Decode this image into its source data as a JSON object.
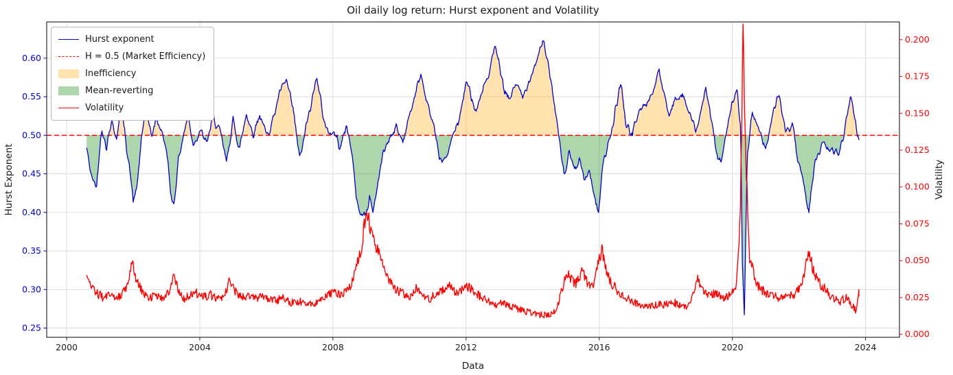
{
  "figure": {
    "title": "Oil daily log return: Hurst exponent and Volatility",
    "xlabel": "Data",
    "ylabel_left": "Hurst Exponent",
    "ylabel_right": "Volatility"
  },
  "legend": {
    "items": [
      {
        "label": "Hurst exponent",
        "type": "line",
        "color": "#0000cc",
        "dash": false
      },
      {
        "label": "H = 0.5 (Market Efficiency)",
        "type": "line",
        "color": "#ff0000",
        "dash": true
      },
      {
        "label": "Inefficiency",
        "type": "patch",
        "color": "#ffa500",
        "opacity": 0.32
      },
      {
        "label": "Mean-reverting",
        "type": "patch",
        "color": "#008000",
        "opacity": 0.32
      },
      {
        "label": "Volatility",
        "type": "line",
        "color": "#ff0000",
        "dash": false
      }
    ]
  },
  "chart_data": {
    "type": "line",
    "title": "Oil daily log return: Hurst exponent and Volatility",
    "xlabel": "Data",
    "ylabel_left": "Hurst Exponent",
    "ylabel_right": "Volatility",
    "grid": true,
    "grid_color": "#d9d9d9",
    "legend_position": "upper left",
    "x_ticks": [
      2000,
      2004,
      2008,
      2012,
      2016,
      2020,
      2024
    ],
    "left_ticks": [
      0.25,
      0.3,
      0.35,
      0.4,
      0.45,
      0.5,
      0.55,
      0.6
    ],
    "right_ticks": [
      0.0,
      0.025,
      0.05,
      0.075,
      0.1,
      0.125,
      0.15,
      0.175,
      0.2
    ],
    "xlim": [
      1999.4,
      2025.02
    ],
    "ylim_left": [
      0.238,
      0.647
    ],
    "ylim_right": [
      -0.002,
      0.212
    ],
    "left_axis_color": "#0000cc",
    "right_axis_color": "#ff0000",
    "reference_line": {
      "label": "H = 0.5 (Market Efficiency)",
      "value": 0.5,
      "color": "#ff0000",
      "style": "dashed"
    },
    "fills": [
      {
        "name": "Inefficiency",
        "condition": "hurst > 0.5",
        "color": "#ffa500",
        "opacity": 0.32
      },
      {
        "name": "Mean-reverting",
        "condition": "hurst < 0.5",
        "color": "#008000",
        "opacity": 0.32
      }
    ],
    "legend_entries": [
      "Hurst exponent",
      "H = 0.5 (Market Efficiency)",
      "Inefficiency",
      "Mean-reverting",
      "Volatility"
    ],
    "series": [
      {
        "name": "Hurst exponent",
        "axis": "left",
        "color": "#0000cc",
        "noise_amp": 0.008,
        "keypoints": [
          [
            2000.6,
            0.49
          ],
          [
            2000.75,
            0.452
          ],
          [
            2000.9,
            0.438
          ],
          [
            2001.05,
            0.505
          ],
          [
            2001.2,
            0.478
          ],
          [
            2001.35,
            0.52
          ],
          [
            2001.5,
            0.492
          ],
          [
            2001.62,
            0.545
          ],
          [
            2001.75,
            0.505
          ],
          [
            2001.88,
            0.462
          ],
          [
            2002.0,
            0.415
          ],
          [
            2002.12,
            0.432
          ],
          [
            2002.25,
            0.498
          ],
          [
            2002.4,
            0.535
          ],
          [
            2002.55,
            0.496
          ],
          [
            2002.7,
            0.522
          ],
          [
            2002.85,
            0.503
          ],
          [
            2003.0,
            0.478
          ],
          [
            2003.12,
            0.428
          ],
          [
            2003.22,
            0.416
          ],
          [
            2003.35,
            0.47
          ],
          [
            2003.5,
            0.5
          ],
          [
            2003.65,
            0.527
          ],
          [
            2003.8,
            0.492
          ],
          [
            2004.0,
            0.512
          ],
          [
            2004.2,
            0.482
          ],
          [
            2004.4,
            0.522
          ],
          [
            2004.6,
            0.498
          ],
          [
            2004.8,
            0.458
          ],
          [
            2005.0,
            0.52
          ],
          [
            2005.2,
            0.492
          ],
          [
            2005.4,
            0.535
          ],
          [
            2005.6,
            0.508
          ],
          [
            2005.8,
            0.53
          ],
          [
            2006.0,
            0.502
          ],
          [
            2006.2,
            0.525
          ],
          [
            2006.4,
            0.556
          ],
          [
            2006.6,
            0.566
          ],
          [
            2006.8,
            0.528
          ],
          [
            2007.0,
            0.472
          ],
          [
            2007.2,
            0.52
          ],
          [
            2007.4,
            0.556
          ],
          [
            2007.52,
            0.576
          ],
          [
            2007.65,
            0.54
          ],
          [
            2007.8,
            0.512
          ],
          [
            2008.0,
            0.5
          ],
          [
            2008.2,
            0.49
          ],
          [
            2008.4,
            0.512
          ],
          [
            2008.55,
            0.478
          ],
          [
            2008.7,
            0.428
          ],
          [
            2008.85,
            0.402
          ],
          [
            2009.0,
            0.396
          ],
          [
            2009.1,
            0.42
          ],
          [
            2009.2,
            0.402
          ],
          [
            2009.35,
            0.44
          ],
          [
            2009.5,
            0.478
          ],
          [
            2009.7,
            0.502
          ],
          [
            2009.9,
            0.52
          ],
          [
            2010.1,
            0.502
          ],
          [
            2010.3,
            0.532
          ],
          [
            2010.5,
            0.562
          ],
          [
            2010.65,
            0.585
          ],
          [
            2010.8,
            0.54
          ],
          [
            2011.0,
            0.518
          ],
          [
            2011.2,
            0.476
          ],
          [
            2011.4,
            0.466
          ],
          [
            2011.6,
            0.5
          ],
          [
            2011.8,
            0.522
          ],
          [
            2012.0,
            0.565
          ],
          [
            2012.15,
            0.545
          ],
          [
            2012.3,
            0.522
          ],
          [
            2012.5,
            0.552
          ],
          [
            2012.7,
            0.582
          ],
          [
            2012.85,
            0.624
          ],
          [
            2013.0,
            0.6
          ],
          [
            2013.15,
            0.562
          ],
          [
            2013.3,
            0.552
          ],
          [
            2013.5,
            0.576
          ],
          [
            2013.7,
            0.556
          ],
          [
            2013.9,
            0.58
          ],
          [
            2014.1,
            0.6
          ],
          [
            2014.3,
            0.627
          ],
          [
            2014.45,
            0.6
          ],
          [
            2014.6,
            0.565
          ],
          [
            2014.8,
            0.5
          ],
          [
            2014.95,
            0.455
          ],
          [
            2015.1,
            0.48
          ],
          [
            2015.25,
            0.45
          ],
          [
            2015.4,
            0.47
          ],
          [
            2015.55,
            0.44
          ],
          [
            2015.7,
            0.455
          ],
          [
            2015.85,
            0.42
          ],
          [
            2015.97,
            0.396
          ],
          [
            2016.1,
            0.46
          ],
          [
            2016.3,
            0.492
          ],
          [
            2016.5,
            0.545
          ],
          [
            2016.65,
            0.576
          ],
          [
            2016.8,
            0.522
          ],
          [
            2017.0,
            0.502
          ],
          [
            2017.2,
            0.526
          ],
          [
            2017.4,
            0.546
          ],
          [
            2017.6,
            0.56
          ],
          [
            2017.8,
            0.584
          ],
          [
            2017.95,
            0.55
          ],
          [
            2018.1,
            0.522
          ],
          [
            2018.3,
            0.546
          ],
          [
            2018.5,
            0.552
          ],
          [
            2018.7,
            0.52
          ],
          [
            2018.9,
            0.502
          ],
          [
            2019.05,
            0.532
          ],
          [
            2019.2,
            0.564
          ],
          [
            2019.35,
            0.52
          ],
          [
            2019.5,
            0.476
          ],
          [
            2019.65,
            0.462
          ],
          [
            2019.8,
            0.5
          ],
          [
            2020.0,
            0.545
          ],
          [
            2020.15,
            0.558
          ],
          [
            2020.25,
            0.5
          ],
          [
            2020.3,
            0.33
          ],
          [
            2020.36,
            0.262
          ],
          [
            2020.45,
            0.47
          ],
          [
            2020.6,
            0.52
          ],
          [
            2020.8,
            0.498
          ],
          [
            2021.0,
            0.48
          ],
          [
            2021.2,
            0.522
          ],
          [
            2021.4,
            0.556
          ],
          [
            2021.6,
            0.502
          ],
          [
            2021.8,
            0.52
          ],
          [
            2022.0,
            0.47
          ],
          [
            2022.15,
            0.436
          ],
          [
            2022.3,
            0.402
          ],
          [
            2022.45,
            0.456
          ],
          [
            2022.6,
            0.47
          ],
          [
            2022.8,
            0.486
          ],
          [
            2023.0,
            0.48
          ],
          [
            2023.2,
            0.476
          ],
          [
            2023.4,
            0.52
          ],
          [
            2023.55,
            0.56
          ],
          [
            2023.7,
            0.522
          ],
          [
            2023.8,
            0.495
          ]
        ]
      },
      {
        "name": "Volatility",
        "axis": "right",
        "color": "#ff0000",
        "noise_amp": 0.002,
        "keypoints": [
          [
            2000.6,
            0.038
          ],
          [
            2000.75,
            0.033
          ],
          [
            2000.9,
            0.028
          ],
          [
            2001.1,
            0.025
          ],
          [
            2001.3,
            0.028
          ],
          [
            2001.5,
            0.024
          ],
          [
            2001.7,
            0.028
          ],
          [
            2001.85,
            0.036
          ],
          [
            2001.97,
            0.05
          ],
          [
            2002.1,
            0.036
          ],
          [
            2002.3,
            0.028
          ],
          [
            2002.5,
            0.025
          ],
          [
            2002.7,
            0.027
          ],
          [
            2002.9,
            0.024
          ],
          [
            2003.1,
            0.031
          ],
          [
            2003.22,
            0.042
          ],
          [
            2003.35,
            0.03
          ],
          [
            2003.5,
            0.024
          ],
          [
            2003.7,
            0.026
          ],
          [
            2003.9,
            0.028
          ],
          [
            2004.1,
            0.025
          ],
          [
            2004.3,
            0.027
          ],
          [
            2004.5,
            0.024
          ],
          [
            2004.7,
            0.026
          ],
          [
            2004.9,
            0.036
          ],
          [
            2005.1,
            0.028
          ],
          [
            2005.3,
            0.025
          ],
          [
            2005.5,
            0.026
          ],
          [
            2005.7,
            0.024
          ],
          [
            2005.9,
            0.026
          ],
          [
            2006.1,
            0.024
          ],
          [
            2006.3,
            0.023
          ],
          [
            2006.5,
            0.025
          ],
          [
            2006.7,
            0.022
          ],
          [
            2006.9,
            0.021
          ],
          [
            2007.1,
            0.023
          ],
          [
            2007.3,
            0.02
          ],
          [
            2007.5,
            0.022
          ],
          [
            2007.7,
            0.024
          ],
          [
            2007.9,
            0.027
          ],
          [
            2008.1,
            0.028
          ],
          [
            2008.3,
            0.027
          ],
          [
            2008.5,
            0.031
          ],
          [
            2008.7,
            0.045
          ],
          [
            2008.85,
            0.058
          ],
          [
            2008.95,
            0.075
          ],
          [
            2009.05,
            0.08
          ],
          [
            2009.15,
            0.07
          ],
          [
            2009.3,
            0.06
          ],
          [
            2009.5,
            0.046
          ],
          [
            2009.7,
            0.036
          ],
          [
            2009.9,
            0.03
          ],
          [
            2010.1,
            0.028
          ],
          [
            2010.3,
            0.026
          ],
          [
            2010.5,
            0.031
          ],
          [
            2010.7,
            0.026
          ],
          [
            2010.9,
            0.024
          ],
          [
            2011.1,
            0.028
          ],
          [
            2011.3,
            0.03
          ],
          [
            2011.5,
            0.034
          ],
          [
            2011.7,
            0.028
          ],
          [
            2011.9,
            0.031
          ],
          [
            2012.1,
            0.032
          ],
          [
            2012.3,
            0.028
          ],
          [
            2012.5,
            0.024
          ],
          [
            2012.7,
            0.022
          ],
          [
            2012.9,
            0.02
          ],
          [
            2013.1,
            0.021
          ],
          [
            2013.3,
            0.019
          ],
          [
            2013.5,
            0.018
          ],
          [
            2013.7,
            0.016
          ],
          [
            2013.9,
            0.015
          ],
          [
            2014.1,
            0.014
          ],
          [
            2014.3,
            0.013
          ],
          [
            2014.5,
            0.013
          ],
          [
            2014.7,
            0.016
          ],
          [
            2014.9,
            0.032
          ],
          [
            2015.0,
            0.042
          ],
          [
            2015.15,
            0.038
          ],
          [
            2015.3,
            0.034
          ],
          [
            2015.5,
            0.044
          ],
          [
            2015.65,
            0.035
          ],
          [
            2015.8,
            0.032
          ],
          [
            2015.95,
            0.046
          ],
          [
            2016.08,
            0.058
          ],
          [
            2016.25,
            0.04
          ],
          [
            2016.4,
            0.034
          ],
          [
            2016.6,
            0.028
          ],
          [
            2016.8,
            0.025
          ],
          [
            2017.0,
            0.022
          ],
          [
            2017.2,
            0.02
          ],
          [
            2017.4,
            0.018
          ],
          [
            2017.6,
            0.019
          ],
          [
            2017.8,
            0.021
          ],
          [
            2018.0,
            0.02
          ],
          [
            2018.2,
            0.022
          ],
          [
            2018.4,
            0.02
          ],
          [
            2018.6,
            0.019
          ],
          [
            2018.8,
            0.025
          ],
          [
            2018.95,
            0.038
          ],
          [
            2019.1,
            0.03
          ],
          [
            2019.3,
            0.026
          ],
          [
            2019.5,
            0.028
          ],
          [
            2019.7,
            0.024
          ],
          [
            2019.9,
            0.026
          ],
          [
            2020.1,
            0.03
          ],
          [
            2020.24,
            0.08
          ],
          [
            2020.32,
            0.202
          ],
          [
            2020.42,
            0.11
          ],
          [
            2020.52,
            0.052
          ],
          [
            2020.65,
            0.04
          ],
          [
            2020.8,
            0.032
          ],
          [
            2021.0,
            0.028
          ],
          [
            2021.2,
            0.026
          ],
          [
            2021.4,
            0.025
          ],
          [
            2021.6,
            0.028
          ],
          [
            2021.8,
            0.026
          ],
          [
            2022.0,
            0.031
          ],
          [
            2022.15,
            0.04
          ],
          [
            2022.3,
            0.056
          ],
          [
            2022.45,
            0.042
          ],
          [
            2022.6,
            0.035
          ],
          [
            2022.8,
            0.03
          ],
          [
            2023.0,
            0.025
          ],
          [
            2023.2,
            0.022
          ],
          [
            2023.4,
            0.025
          ],
          [
            2023.6,
            0.02
          ],
          [
            2023.72,
            0.016
          ],
          [
            2023.8,
            0.028
          ]
        ]
      }
    ]
  }
}
